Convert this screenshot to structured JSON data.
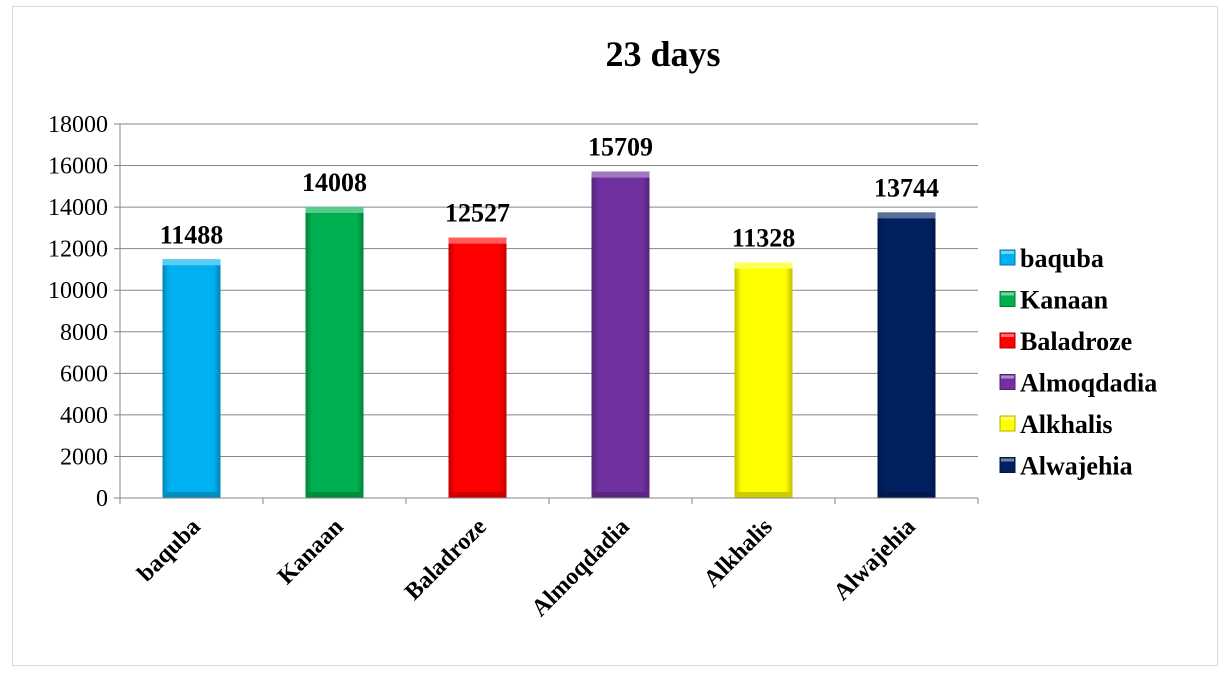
{
  "chart_data": {
    "type": "bar",
    "title": "23 days",
    "xlabel": "",
    "ylabel": "",
    "categories": [
      "baquba",
      "Kanaan",
      "Baladroze",
      "Almoqdadia",
      "Alkhalis",
      "Alwajehia"
    ],
    "values": [
      11488,
      14008,
      12527,
      15709,
      11328,
      13744
    ],
    "colors": [
      "#00b0f0",
      "#00b050",
      "#ff0000",
      "#7030a0",
      "#ffff00",
      "#002060"
    ],
    "ylim": [
      0,
      18000
    ],
    "yticks": [
      "0",
      "2000",
      "4000",
      "6000",
      "8000",
      "10000",
      "12000",
      "14000",
      "16000",
      "18000"
    ],
    "grid": true,
    "legend_position": "right",
    "legend": [
      "baquba",
      "Kanaan",
      "Baladroze",
      "Almoqdadia",
      "Alkhalis",
      "Alwajehia"
    ]
  }
}
